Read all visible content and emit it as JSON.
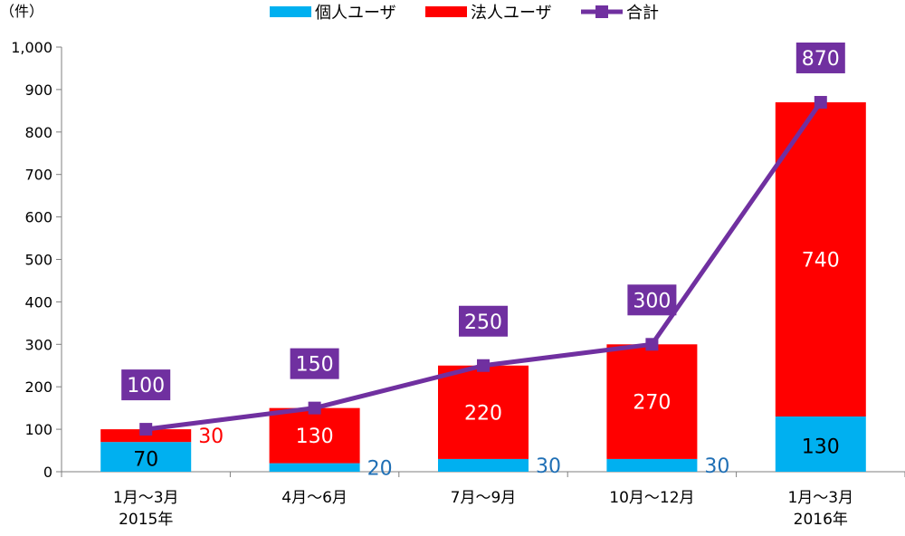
{
  "chart_data": {
    "type": "bar",
    "stacked": true,
    "unit_label": "（件）",
    "categories": [
      [
        "1月～3月",
        "2015年"
      ],
      [
        "4月～6月"
      ],
      [
        "7月～9月"
      ],
      [
        "10月～12月"
      ],
      [
        "1月～3月",
        "2016年"
      ]
    ],
    "series": [
      {
        "name": "個人ユーザ",
        "type": "bar",
        "color": "#00b0f0",
        "label_color": "#1f6fb5",
        "values": [
          70,
          20,
          30,
          30,
          130
        ]
      },
      {
        "name": "法人ユーザ",
        "type": "bar",
        "color": "#ff0000",
        "label_color": "#ffffff",
        "values": [
          30,
          130,
          220,
          270,
          740
        ]
      },
      {
        "name": "合計",
        "type": "line",
        "color": "#7030a0",
        "values": [
          100,
          150,
          250,
          300,
          870
        ]
      }
    ],
    "ylim": [
      0,
      1000
    ],
    "yticks": [
      "0",
      "100",
      "200",
      "300",
      "400",
      "500",
      "600",
      "700",
      "800",
      "900",
      "1,000"
    ],
    "legend": "top",
    "grid": false
  }
}
